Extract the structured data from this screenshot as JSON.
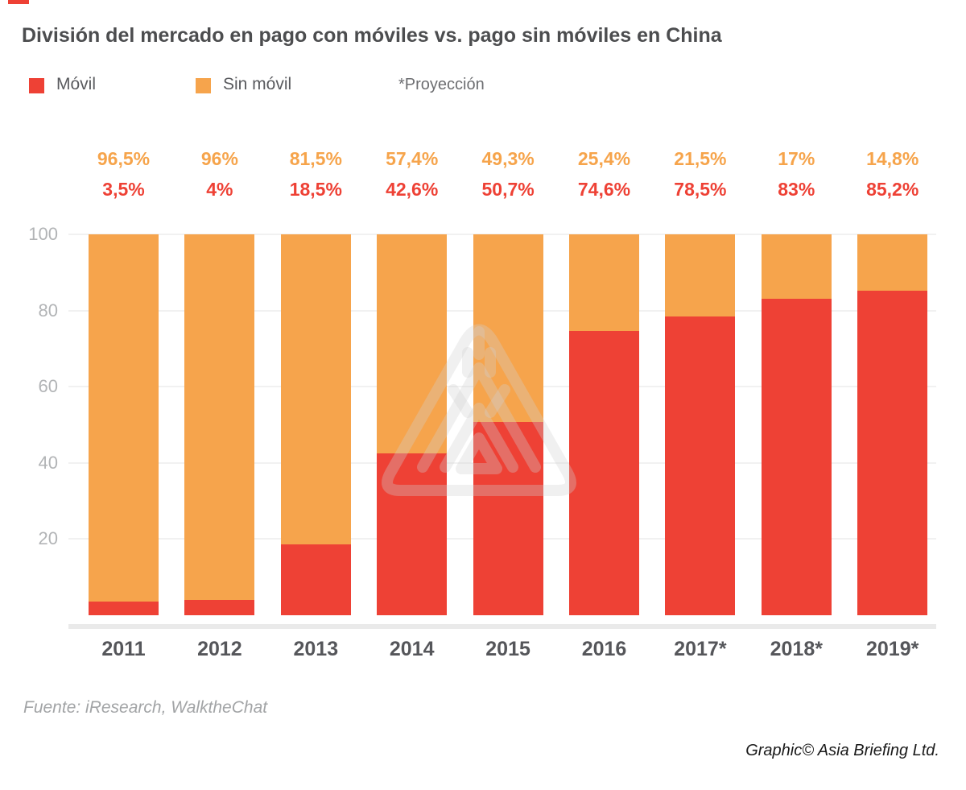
{
  "accent_color": "#EE4135",
  "title": "División del mercado en pago con móviles vs. pago sin móviles en China",
  "legend": {
    "mobile_label": "Móvil",
    "nonmobile_label": "Sin móvil",
    "projection_note": "*Proyección"
  },
  "footer": {
    "source": "Fuente: iResearch, WalktheChat",
    "credit": "Graphic© Asia Briefing Ltd."
  },
  "watermark_icon": "asia-briefing-triangle-logo",
  "chart_data": {
    "type": "bar",
    "stacked": true,
    "unit": "%",
    "categories": [
      "2011",
      "2012",
      "2013",
      "2014",
      "2015",
      "2016",
      "2017*",
      "2018*",
      "2019*"
    ],
    "series": [
      {
        "name": "Móvil",
        "color": "#EE4135",
        "label_color": "#EE4135",
        "values": [
          3.5,
          4,
          18.5,
          42.6,
          50.7,
          74.6,
          78.5,
          83,
          85.2
        ],
        "labels": [
          "3,5%",
          "4%",
          "18,5%",
          "42,6%",
          "50,7%",
          "74,6%",
          "78,5%",
          "83%",
          "85,2%"
        ]
      },
      {
        "name": "Sin móvil",
        "color": "#F6A44C",
        "label_color": "#F6A44B",
        "values": [
          96.5,
          96,
          81.5,
          57.4,
          49.3,
          25.4,
          21.5,
          17,
          14.8
        ],
        "labels": [
          "96,5%",
          "96%",
          "81,5%",
          "57,4%",
          "49,3%",
          "25,4%",
          "21,5%",
          "17%",
          "14,8%"
        ]
      }
    ],
    "yticks": [
      20,
      40,
      60,
      80,
      100
    ],
    "ylim": [
      0,
      100
    ],
    "grid": "horizontal",
    "legend_position": "top-left",
    "gridline_color": "#F1F1F1",
    "baseline_color": "#EAEAEA"
  }
}
